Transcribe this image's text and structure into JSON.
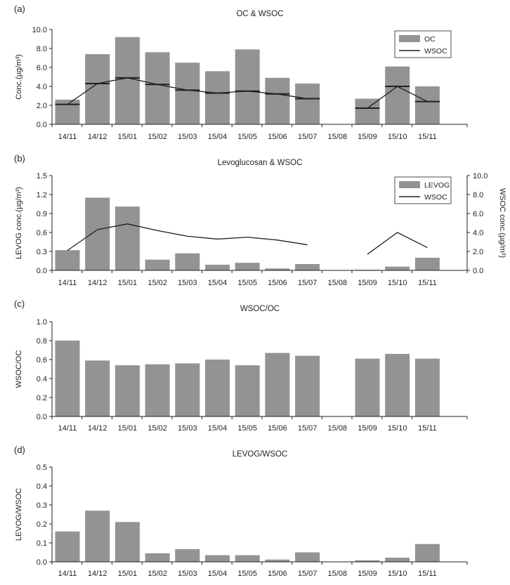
{
  "colors": {
    "bar": "#939393",
    "line": "#231f20",
    "axis": "#231f20"
  },
  "categories": [
    "14/11",
    "14/12",
    "15/01",
    "15/02",
    "15/03",
    "15/04",
    "15/05",
    "15/06",
    "15/07",
    "15/08",
    "15/09",
    "15/10",
    "15/11"
  ],
  "chart_data": [
    {
      "panel": "(a)",
      "type": "bar",
      "title": "OC & WSOC",
      "ylabel": "Conc.(µg/m³)",
      "ylim": [
        0,
        10
      ],
      "yticks": [
        "0.0",
        "2.0",
        "4.0",
        "6.0",
        "8.0",
        "10.0"
      ],
      "legend_position": "top-right",
      "legend": [
        {
          "label": "OC",
          "kind": "bar"
        },
        {
          "label": "WSOC",
          "kind": "line"
        }
      ],
      "series": [
        {
          "name": "OC",
          "kind": "bar",
          "values": [
            2.6,
            7.4,
            9.2,
            7.6,
            6.5,
            5.6,
            7.9,
            4.9,
            4.3,
            null,
            2.7,
            6.1,
            4.0
          ]
        },
        {
          "name": "WSOC",
          "kind": "line",
          "markers": "hline",
          "values": [
            2.1,
            4.3,
            4.9,
            4.2,
            3.6,
            3.3,
            3.5,
            3.2,
            2.7,
            null,
            1.7,
            4.0,
            2.4
          ]
        }
      ]
    },
    {
      "panel": "(b)",
      "type": "bar",
      "title": "Levoglucosan & WSOC",
      "ylabel": "LEVOG conc.(µg/m³)",
      "y2label": "WSOC conc.(µg/m³)",
      "ylim": [
        0,
        1.5
      ],
      "y2lim": [
        0,
        10
      ],
      "yticks": [
        "0.0",
        "0.3",
        "0.6",
        "0.9",
        "1.2",
        "1.5"
      ],
      "y2ticks": [
        "0.0",
        "2.0",
        "4.0",
        "6.0",
        "8.0",
        "10.0"
      ],
      "legend_position": "top-right",
      "legend": [
        {
          "label": "LEVOG",
          "kind": "bar"
        },
        {
          "label": "WSOC",
          "kind": "line"
        }
      ],
      "series": [
        {
          "name": "LEVOG",
          "kind": "bar",
          "values": [
            0.32,
            1.15,
            1.01,
            0.17,
            0.27,
            0.09,
            0.12,
            0.03,
            0.1,
            null,
            0.01,
            0.06,
            0.2
          ]
        },
        {
          "name": "WSOC",
          "kind": "line",
          "axis": "y2",
          "values": [
            2.1,
            4.3,
            4.9,
            4.2,
            3.6,
            3.3,
            3.5,
            3.2,
            2.7,
            null,
            1.7,
            4.0,
            2.4
          ]
        }
      ]
    },
    {
      "panel": "(c)",
      "type": "bar",
      "title": "WSOC/OC",
      "ylabel": "WSOC/OC",
      "ylim": [
        0,
        1.0
      ],
      "yticks": [
        "0.0",
        "0.2",
        "0.4",
        "0.6",
        "0.8",
        "1.0"
      ],
      "series": [
        {
          "kind": "bar",
          "values": [
            0.8,
            0.59,
            0.54,
            0.55,
            0.56,
            0.6,
            0.54,
            0.67,
            0.64,
            null,
            0.61,
            0.66,
            0.61
          ]
        }
      ]
    },
    {
      "panel": "(d)",
      "type": "bar",
      "title": "LEVOG/WSOC",
      "ylabel": "LEVOG/WSOC",
      "ylim": [
        0,
        0.5
      ],
      "yticks": [
        "0.0",
        "0.1",
        "0.2",
        "0.3",
        "0.4",
        "0.5"
      ],
      "series": [
        {
          "kind": "bar",
          "values": [
            0.16,
            0.27,
            0.21,
            0.045,
            0.067,
            0.035,
            0.035,
            0.012,
            0.05,
            null,
            0.008,
            0.022,
            0.094
          ]
        }
      ]
    }
  ]
}
